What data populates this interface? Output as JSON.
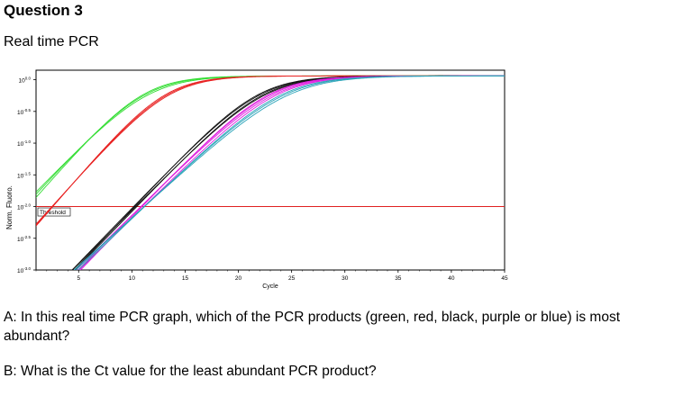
{
  "document": {
    "title": "Question 3",
    "subtitle": "Real time PCR",
    "question_a": "A: In this real time PCR graph, which of the PCR products (green, red, black, purple or blue) is most abundant?",
    "question_b": "B: What is the Ct value for the least abundant PCR product?"
  },
  "chart_data": {
    "type": "line",
    "title": "",
    "xlabel": "Cycle",
    "ylabel": "Norm. Fluoro.",
    "x_ticks": [
      "5",
      "10",
      "15",
      "20",
      "25",
      "30",
      "35",
      "40",
      "45"
    ],
    "x_tick_values": [
      5,
      10,
      15,
      20,
      25,
      30,
      35,
      40,
      45
    ],
    "y_ticks": [
      {
        "base": "10",
        "exp": "0.0",
        "value": 0.0
      },
      {
        "base": "10",
        "exp": "-0.5",
        "value": -0.5
      },
      {
        "base": "10",
        "exp": "-1.0",
        "value": -1.0
      },
      {
        "base": "10",
        "exp": "-1.5",
        "value": -1.5
      },
      {
        "base": "10",
        "exp": "-2.0",
        "value": -2.0
      },
      {
        "base": "10",
        "exp": "-2.5",
        "value": -2.5
      },
      {
        "base": "10",
        "exp": "-3.0",
        "value": -3.0
      }
    ],
    "xlim": [
      1,
      45
    ],
    "ylim_log10": [
      -3.0,
      0.15
    ],
    "y_scale": "log",
    "grid": false,
    "threshold": {
      "label": "Threshold",
      "log10_value": -2.0,
      "color": "#e02020"
    },
    "series": [
      {
        "color": "#33dd33",
        "curves": [
          {
            "c": 11.2,
            "k": 0.42
          },
          {
            "c": 11.5,
            "k": 0.4
          },
          {
            "c": 11.0,
            "k": 0.44
          }
        ]
      },
      {
        "color": "#e82020",
        "curves": [
          {
            "c": 13.3,
            "k": 0.44
          },
          {
            "c": 13.5,
            "k": 0.43
          },
          {
            "c": 13.1,
            "k": 0.45
          }
        ]
      },
      {
        "color": "#111111",
        "curves": [
          {
            "c": 22.0,
            "k": 0.4
          },
          {
            "c": 22.3,
            "k": 0.4
          },
          {
            "c": 21.8,
            "k": 0.41
          },
          {
            "c": 22.5,
            "k": 0.39
          }
        ]
      },
      {
        "color": "#e020e0",
        "curves": [
          {
            "c": 23.0,
            "k": 0.39
          },
          {
            "c": 23.3,
            "k": 0.38
          },
          {
            "c": 22.8,
            "k": 0.4
          },
          {
            "c": 23.6,
            "k": 0.38
          }
        ]
      },
      {
        "color": "#2aa3b8",
        "curves": [
          {
            "c": 24.3,
            "k": 0.36
          },
          {
            "c": 24.7,
            "k": 0.35
          },
          {
            "c": 24.0,
            "k": 0.37
          }
        ]
      }
    ]
  }
}
